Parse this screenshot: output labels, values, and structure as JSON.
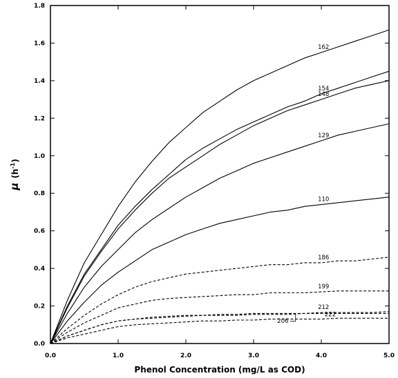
{
  "chart_data": {
    "type": "line",
    "title": "",
    "xlabel": "Phenol Concentration (mg/L as COD)",
    "ylabel_symbol": "μ",
    "ylabel_unit_base": "(h",
    "ylabel_unit_exp": "-1",
    "ylabel_unit_close": ")",
    "xlim": [
      0,
      5
    ],
    "ylim": [
      0,
      1.8
    ],
    "x_ticks": [
      "0.0",
      "1.0",
      "2.0",
      "3.0",
      "4.0",
      "5.0"
    ],
    "y_ticks": [
      "0.0",
      "0.2",
      "0.4",
      "0.6",
      "0.8",
      "1.0",
      "1.2",
      "1.4",
      "1.6",
      "1.8"
    ],
    "grid": false,
    "legend": "none",
    "x": [
      0,
      0.25,
      0.5,
      0.75,
      1.0,
      1.25,
      1.5,
      1.75,
      2.0,
      2.25,
      2.5,
      2.75,
      3.0,
      3.25,
      3.5,
      3.75,
      4.0,
      4.25,
      4.5,
      4.75,
      5.0
    ],
    "series": [
      {
        "name": "162",
        "style": "solid",
        "values": [
          0.0,
          0.23,
          0.43,
          0.58,
          0.73,
          0.86,
          0.97,
          1.07,
          1.15,
          1.23,
          1.29,
          1.35,
          1.4,
          1.44,
          1.48,
          1.52,
          1.55,
          1.58,
          1.61,
          1.64,
          1.67
        ]
      },
      {
        "name": "154",
        "style": "solid",
        "values": [
          0.0,
          0.2,
          0.37,
          0.5,
          0.63,
          0.73,
          0.82,
          0.9,
          0.98,
          1.04,
          1.09,
          1.14,
          1.18,
          1.22,
          1.26,
          1.29,
          1.33,
          1.36,
          1.39,
          1.42,
          1.45
        ]
      },
      {
        "name": "148",
        "style": "solid",
        "values": [
          0.0,
          0.19,
          0.36,
          0.49,
          0.61,
          0.71,
          0.8,
          0.88,
          0.94,
          1.0,
          1.06,
          1.11,
          1.16,
          1.2,
          1.24,
          1.27,
          1.3,
          1.33,
          1.36,
          1.38,
          1.4
        ]
      },
      {
        "name": "129",
        "style": "solid",
        "values": [
          0.0,
          0.16,
          0.3,
          0.41,
          0.5,
          0.59,
          0.66,
          0.72,
          0.78,
          0.83,
          0.88,
          0.92,
          0.96,
          0.99,
          1.02,
          1.05,
          1.08,
          1.11,
          1.13,
          1.15,
          1.17
        ]
      },
      {
        "name": "110",
        "style": "solid",
        "values": [
          0.0,
          0.12,
          0.22,
          0.31,
          0.38,
          0.44,
          0.5,
          0.54,
          0.58,
          0.61,
          0.64,
          0.66,
          0.68,
          0.7,
          0.71,
          0.73,
          0.74,
          0.75,
          0.76,
          0.77,
          0.78
        ]
      },
      {
        "name": "186",
        "style": "dashed",
        "values": [
          0.0,
          0.08,
          0.15,
          0.21,
          0.26,
          0.3,
          0.33,
          0.35,
          0.37,
          0.38,
          0.39,
          0.4,
          0.41,
          0.42,
          0.42,
          0.43,
          0.43,
          0.44,
          0.44,
          0.45,
          0.46
        ]
      },
      {
        "name": "199",
        "style": "dashed",
        "values": [
          0.0,
          0.06,
          0.11,
          0.15,
          0.19,
          0.21,
          0.23,
          0.24,
          0.245,
          0.25,
          0.255,
          0.26,
          0.26,
          0.27,
          0.27,
          0.27,
          0.275,
          0.28,
          0.28,
          0.28,
          0.28
        ]
      },
      {
        "name": "212",
        "style": "dashed",
        "values": [
          0.0,
          0.04,
          0.07,
          0.1,
          0.12,
          0.13,
          0.14,
          0.145,
          0.15,
          0.15,
          0.155,
          0.155,
          0.16,
          0.16,
          0.16,
          0.16,
          0.165,
          0.165,
          0.165,
          0.165,
          0.17
        ]
      },
      {
        "name": "206",
        "style": "dashed",
        "values": [
          0.0,
          0.04,
          0.07,
          0.1,
          0.12,
          0.13,
          0.135,
          0.14,
          0.145,
          0.15,
          0.15,
          0.15,
          0.155,
          0.155,
          0.155,
          0.16,
          0.16,
          0.16,
          0.16,
          0.16,
          0.16
        ]
      },
      {
        "name": "222",
        "style": "dashed",
        "values": [
          0.0,
          0.03,
          0.05,
          0.07,
          0.09,
          0.1,
          0.105,
          0.11,
          0.115,
          0.12,
          0.12,
          0.125,
          0.125,
          0.13,
          0.13,
          0.13,
          0.13,
          0.135,
          0.135,
          0.135,
          0.135
        ]
      }
    ]
  }
}
